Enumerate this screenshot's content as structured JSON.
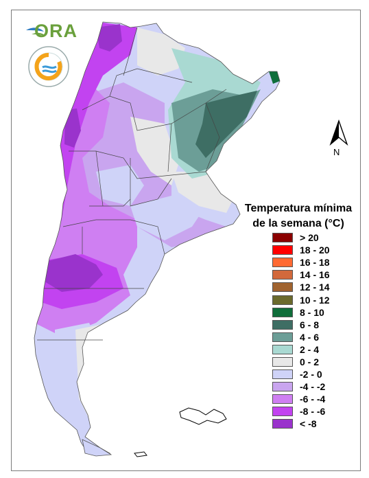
{
  "logos": {
    "ora_text": "ORA",
    "smn_ring_text": "SERVICIO METEOROLÓGICO NACIONAL · ARGENTINA ·"
  },
  "north_arrow": {
    "label": "N",
    "icon": "north-arrow-icon"
  },
  "legend": {
    "title_line1": "Temperatura mínima",
    "title_line2": "de la semana (°C)",
    "classes": [
      {
        "label": "> 20",
        "color": "#8b0000"
      },
      {
        "label": "18 - 20",
        "color": "#ff0000"
      },
      {
        "label": "16 - 18",
        "color": "#ff6a33"
      },
      {
        "label": "14 - 16",
        "color": "#d2693c"
      },
      {
        "label": "12 - 14",
        "color": "#a0632f"
      },
      {
        "label": "10 - 12",
        "color": "#6b6a2c"
      },
      {
        "label": "8 - 10",
        "color": "#0f6e3a"
      },
      {
        "label": "6 - 8",
        "color": "#3e6e64"
      },
      {
        "label": "4 - 6",
        "color": "#6c9e97"
      },
      {
        "label": "2 - 4",
        "color": "#a9d9d2"
      },
      {
        "label": "0 - 2",
        "color": "#e8e8e8"
      },
      {
        "label": "-2 - 0",
        "color": "#cfd3f8"
      },
      {
        "label": "-4 - -2",
        "color": "#c9a5ef"
      },
      {
        "label": "-6 - -4",
        "color": "#cf7ff2"
      },
      {
        "label": "-8 - -6",
        "color": "#c243f0"
      },
      {
        "label": "< -8",
        "color": "#9a33cc"
      }
    ]
  }
}
